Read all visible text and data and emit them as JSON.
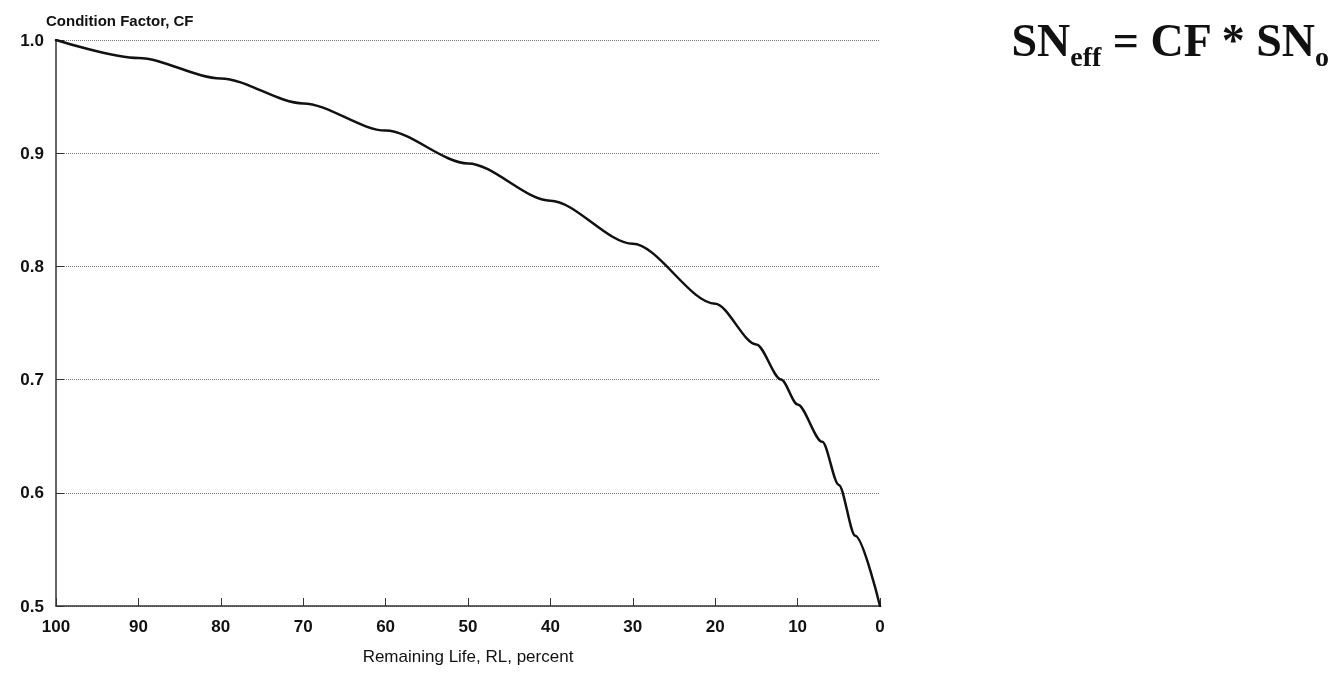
{
  "chart_data": {
    "type": "line",
    "xlabel": "Remaining Life, RL, percent",
    "ylabel": "Condition Factor, CF",
    "annotations": [
      "SN$_{eff}$ = CF * SN$_{o}$"
    ],
    "series": [
      {
        "color": "#111111",
        "x": [
          100,
          90,
          80,
          70,
          60,
          50,
          40,
          30,
          20,
          15,
          12,
          10,
          7,
          5,
          3,
          0
        ],
        "values": [
          1.0,
          0.984,
          0.966,
          0.944,
          0.92,
          0.891,
          0.858,
          0.82,
          0.767,
          0.731,
          0.7,
          0.678,
          0.645,
          0.607,
          0.562,
          0.5
        ]
      }
    ],
    "xlim": [
      100,
      0
    ],
    "xticks": [
      100,
      90,
      80,
      70,
      60,
      50,
      40,
      30,
      20,
      10,
      0
    ],
    "ylim": [
      0.5,
      1.0
    ],
    "yticks": [
      {
        "value": 0.5,
        "label": "0.5"
      },
      {
        "value": 0.6,
        "label": "0.6"
      },
      {
        "value": 0.7,
        "label": "0.7"
      },
      {
        "value": 0.8,
        "label": "0.8"
      },
      {
        "value": 0.9,
        "label": "0.9"
      },
      {
        "value": 1.0,
        "label": "1.0"
      }
    ],
    "grid": "y",
    "marker": "none",
    "line_style": "solid"
  }
}
